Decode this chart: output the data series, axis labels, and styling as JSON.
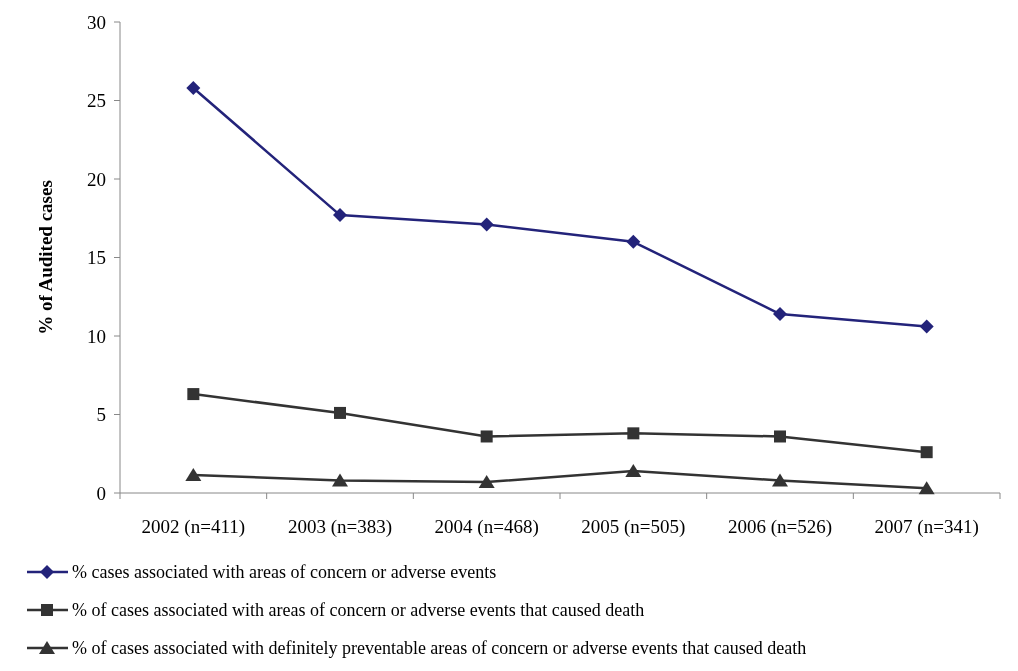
{
  "chart_data": {
    "type": "line",
    "ylabel": "% of Audited cases",
    "categories": [
      "2002 (n=411)",
      "2003 (n=383)",
      "2004 (n=468)",
      "2005 (n=505)",
      "2006 (n=526)",
      "2007 (n=341)"
    ],
    "series": [
      {
        "name": "% cases associated with areas of concern or adverse events",
        "color": "#23237a",
        "marker": "diamond",
        "values": [
          25.8,
          17.7,
          17.1,
          16.0,
          11.4,
          10.6
        ]
      },
      {
        "name": "% of cases associated with areas of concern or adverse events that caused death",
        "color": "#333333",
        "marker": "square",
        "values": [
          6.3,
          5.1,
          3.6,
          3.8,
          3.6,
          2.6
        ]
      },
      {
        "name": "% of cases associated with definitely preventable areas of concern or adverse events that caused death",
        "color": "#333333",
        "marker": "triangle",
        "values": [
          1.15,
          0.8,
          0.7,
          1.4,
          0.8,
          0.3
        ]
      }
    ],
    "ylim": [
      0,
      30
    ],
    "yticks": [
      0,
      5,
      10,
      15,
      20,
      25,
      30
    ],
    "grid": false,
    "legend": "bottom"
  }
}
